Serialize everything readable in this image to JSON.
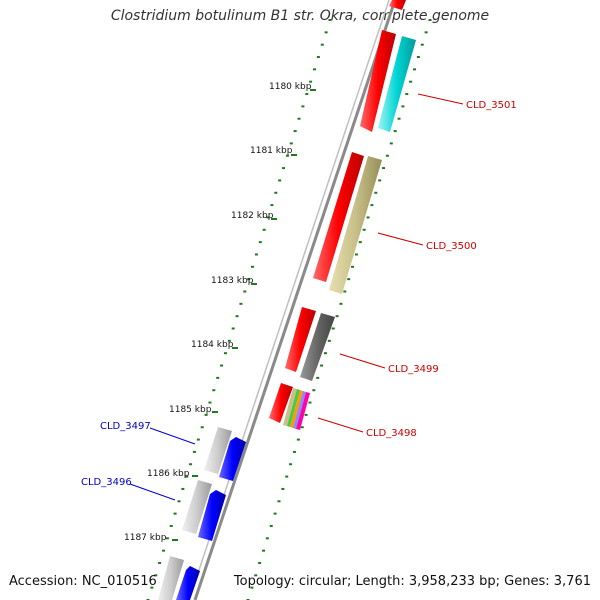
{
  "title": "Clostridium botulinum B1 str. Okra, complete genome",
  "footer": {
    "accession": "Accession: NC_010516",
    "summary": "Topology: circular; Length: 3,958,233 bp; Genes: 3,761"
  },
  "colors": {
    "backbone": "#8a8a8a",
    "tick": "#1e7a1e",
    "cds": "#ff0000",
    "forward_label": "#cc0000",
    "reverse_label": "#0000cc"
  },
  "ruler": {
    "unit": "kbp",
    "labels": [
      "1180 kbp",
      "1181 kbp",
      "1182 kbp",
      "1183 kbp",
      "1184 kbp",
      "1185 kbp",
      "1186 kbp",
      "1187 kbp"
    ]
  },
  "genes": [
    {
      "label": "CLD_3501",
      "strand": "+",
      "feature_color": "#00d4d4"
    },
    {
      "label": "CLD_3500",
      "strand": "+",
      "feature_color": "#c8c088"
    },
    {
      "label": "CLD_3499",
      "strand": "+",
      "feature_color": "#666666"
    },
    {
      "label": "CLD_3498",
      "strand": "+",
      "feature_color": "multicolor"
    },
    {
      "label": "CLD_3497",
      "strand": "-",
      "feature_color": "#0000ff"
    },
    {
      "label": "CLD_3496",
      "strand": "-",
      "feature_color": "#0000ff"
    }
  ]
}
